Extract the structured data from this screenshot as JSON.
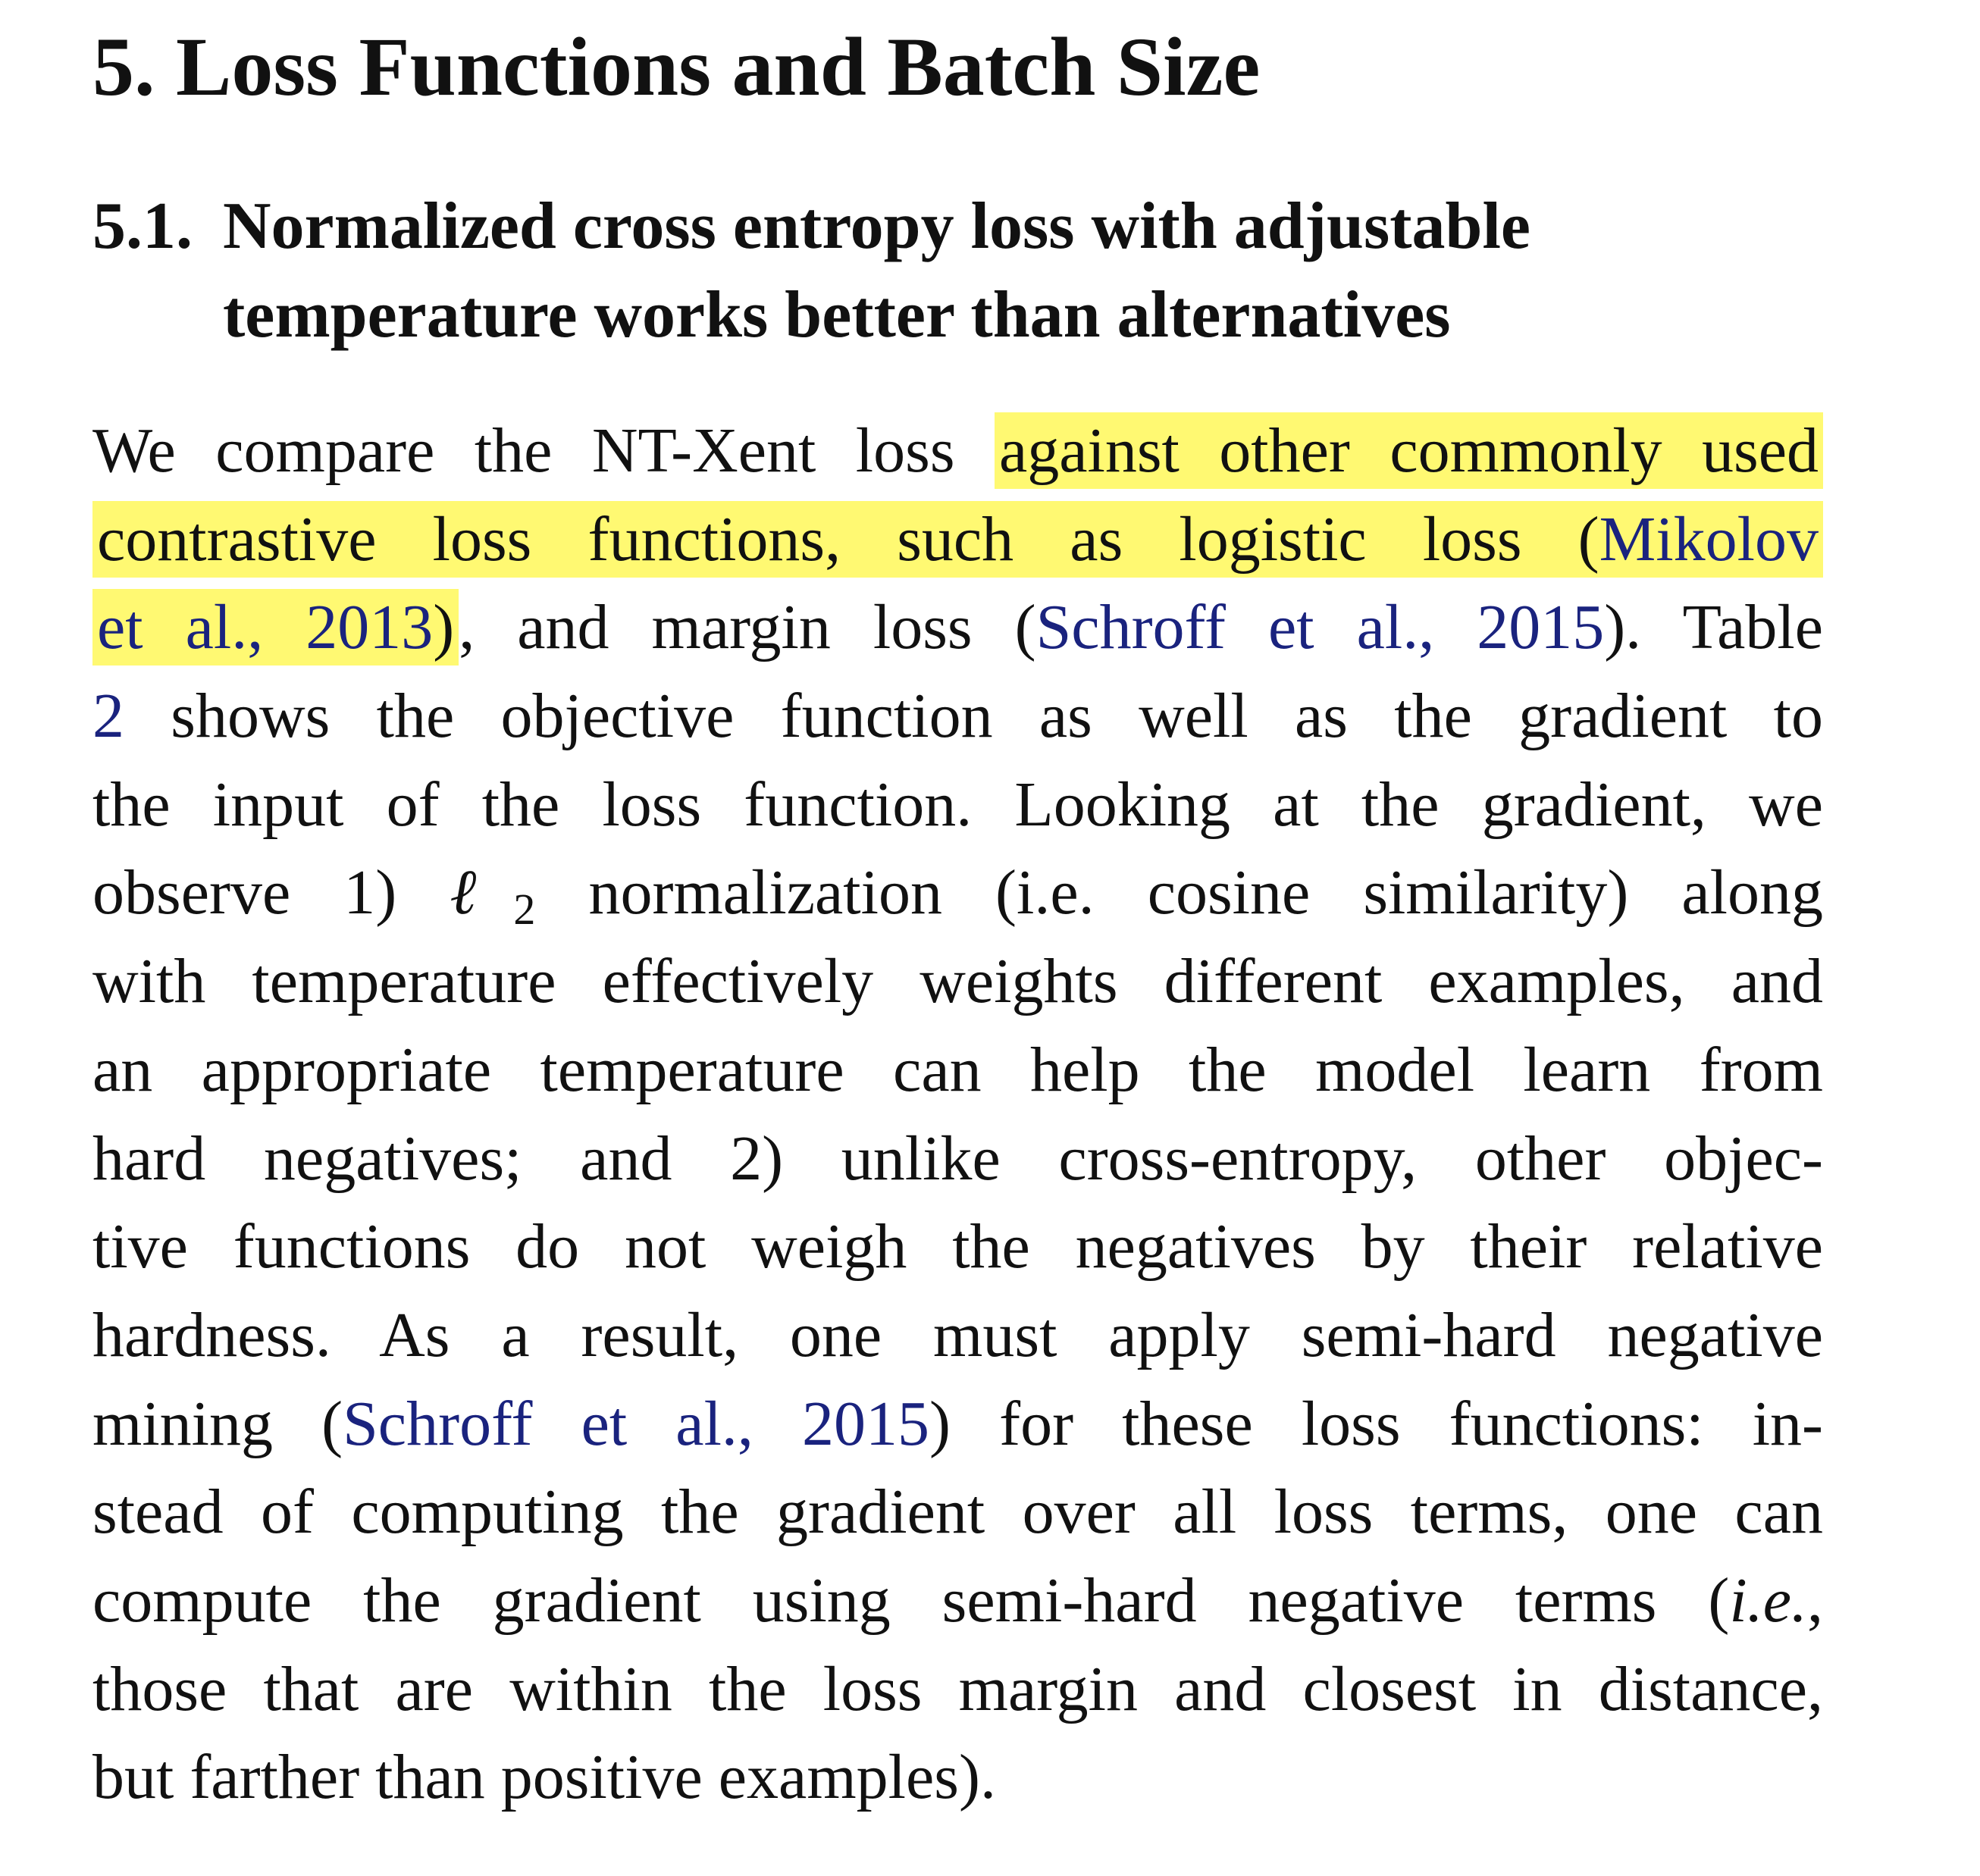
{
  "section": {
    "title": "5. Loss Functions and Batch Size"
  },
  "subsection": {
    "number": "5.1.",
    "title_line1": "Normalized cross entropy loss with adjustable",
    "title_line2": "temperature works better than alternatives"
  },
  "paragraph": {
    "l1_a": "We compare the NT-Xent loss ",
    "l1_b": "against other commonly used",
    "l2_a": "contrastive loss functions, such as logistic loss (",
    "l2_cite": "Mikolov",
    "l3_cite": "et al., 2013",
    "l3_b": ")",
    "l3_c": ", and margin loss (",
    "l3_cite2": "Schroff et al., 2015",
    "l3_d": "). Table",
    "l4_ref": "2",
    "l4_a": " shows the objective function as well as the gradient to",
    "l5": "the input of the loss function. Looking at the gradient, we",
    "l6_a": "observe 1) ",
    "l6_ell": "ℓ",
    "l6_sub": "2",
    "l6_b": " normalization (i.e.  cosine similarity) along",
    "l7": "with temperature effectively weights different examples, and",
    "l8": "an appropriate temperature can help the model learn from",
    "l9": "hard negatives; and 2) unlike cross-entropy, other objec-",
    "l10": "tive functions do not weigh the negatives by their relative",
    "l11": "hardness.  As a result, one must apply semi-hard negative",
    "l12_a": "mining (",
    "l12_cite": "Schroff et al., 2015",
    "l12_b": ") for these loss functions:  in-",
    "l13": "stead of computing the gradient over all loss terms, one can",
    "l14_a": "compute the gradient using semi-hard negative terms (",
    "l14_ie": "i.e.",
    "l14_b": ",",
    "l15": "those that are within the loss margin and closest in distance,",
    "l16": "but farther than positive examples)."
  },
  "colors": {
    "text": "#111111",
    "citation": "#1a237e",
    "highlight": "#fff73c"
  }
}
